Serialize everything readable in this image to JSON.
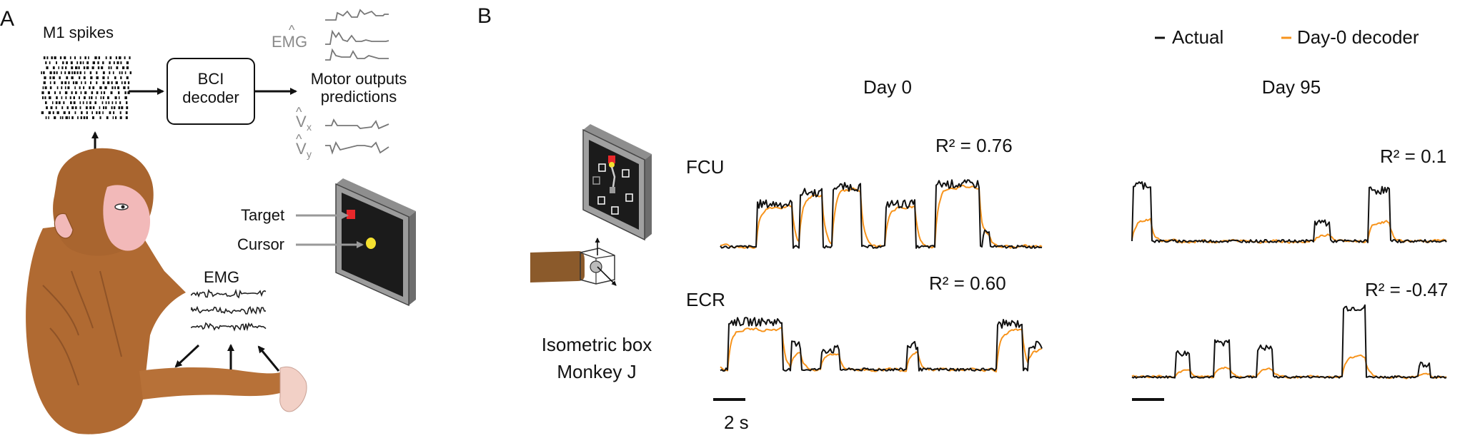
{
  "panel_a": {
    "label": "A",
    "m1_spikes": "M1 spikes",
    "decoder_line1": "BCI",
    "decoder_line2": "decoder",
    "outputs_line1": "Motor outputs",
    "outputs_line2": "predictions",
    "emg_hat": "EMG",
    "vx_hat": "V",
    "vx_sub": "x",
    "vy_hat": "V",
    "vy_sub": "y",
    "target": "Target",
    "cursor": "Cursor",
    "emg": "EMG"
  },
  "panel_b": {
    "label": "B",
    "legend_actual": "Actual",
    "legend_decoder": "Day-0 decoder",
    "day0_title": "Day 0",
    "day95_title": "Day 95",
    "fcu_label": "FCU",
    "ecr_label": "ECR",
    "r2_fcu_day0": "R² = 0.76",
    "r2_fcu_day95": "R² = 0.1",
    "r2_ecr_day0": "R² = 0.60",
    "r2_ecr_day95": "R² = -0.47",
    "scale_bar": "2 s",
    "setup_line1": "Isometric box",
    "setup_line2": "Monkey J"
  },
  "colors": {
    "actual": "#111111",
    "decoder": "#f7941d",
    "target": "#e8282b",
    "cursor": "#f5e130",
    "fur": "#b06a32",
    "face": "#f2b9b9"
  }
}
